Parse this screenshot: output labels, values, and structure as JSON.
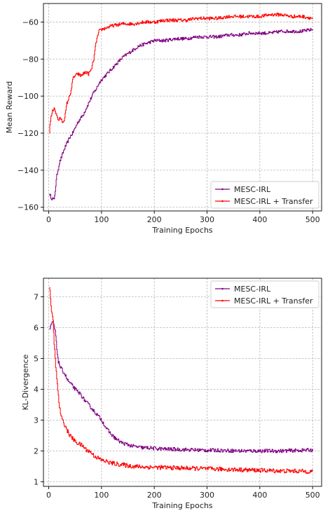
{
  "chart_data": [
    {
      "type": "line",
      "title": "",
      "xlabel": "Training Epochs",
      "ylabel": "Mean Reward",
      "xlim": [
        -10,
        517
      ],
      "ylim": [
        -162,
        -50
      ],
      "xticks": [
        0,
        100,
        200,
        300,
        400,
        500
      ],
      "yticks": [
        -160,
        -140,
        -120,
        -100,
        -80,
        -60
      ],
      "xtick_labels": [
        "0",
        "100",
        "200",
        "300",
        "400",
        "500"
      ],
      "ytick_labels": [
        "−160",
        "−140",
        "−120",
        "−100",
        "−80",
        "−60"
      ],
      "grid": true,
      "legend_position": "bottom-right",
      "series": [
        {
          "name": "MESC-IRL",
          "color": "#800080",
          "x": [
            1,
            5,
            10,
            15,
            20,
            25,
            30,
            35,
            40,
            45,
            50,
            55,
            60,
            65,
            70,
            75,
            80,
            85,
            90,
            95,
            100,
            110,
            120,
            130,
            140,
            150,
            160,
            170,
            180,
            190,
            200,
            220,
            240,
            260,
            280,
            300,
            320,
            340,
            360,
            380,
            400,
            420,
            440,
            460,
            480,
            500
          ],
          "y": [
            -153,
            -155,
            -156,
            -143,
            -136,
            -132,
            -128,
            -125,
            -122,
            -120,
            -117,
            -114,
            -112,
            -110,
            -107,
            -104,
            -101,
            -98,
            -96,
            -93,
            -91,
            -88,
            -85,
            -82,
            -79,
            -77,
            -75,
            -73,
            -72,
            -71,
            -70,
            -70,
            -69,
            -69,
            -68,
            -68,
            -68,
            -67,
            -67,
            -66,
            -66,
            -66,
            -65,
            -65,
            -65,
            -64
          ]
        },
        {
          "name": "MESC-IRL + Transfer",
          "color": "#ff0000",
          "x": [
            1,
            3,
            6,
            10,
            14,
            18,
            22,
            26,
            30,
            34,
            38,
            42,
            46,
            50,
            55,
            60,
            65,
            70,
            75,
            80,
            85,
            90,
            95,
            100,
            110,
            120,
            140,
            160,
            180,
            200,
            220,
            240,
            260,
            280,
            300,
            320,
            340,
            360,
            380,
            400,
            420,
            440,
            460,
            480,
            500
          ],
          "y": [
            -119,
            -113,
            -109,
            -106,
            -110,
            -113,
            -112,
            -114,
            -112,
            -104,
            -101,
            -97,
            -90,
            -89,
            -88,
            -89,
            -88,
            -87,
            -88,
            -86,
            -80,
            -70,
            -65,
            -64,
            -63,
            -62,
            -61,
            -61,
            -60,
            -60,
            -59,
            -59,
            -59,
            -58,
            -58,
            -58,
            -57,
            -57,
            -57,
            -57,
            -56,
            -56,
            -57,
            -57,
            -58
          ]
        }
      ]
    },
    {
      "type": "line",
      "title": "",
      "xlabel": "Training Epochs",
      "ylabel": "KL-Divergence",
      "xlim": [
        -10,
        517
      ],
      "ylim": [
        0.85,
        7.6
      ],
      "xticks": [
        0,
        100,
        200,
        300,
        400,
        500
      ],
      "yticks": [
        1,
        2,
        3,
        4,
        5,
        6,
        7
      ],
      "xtick_labels": [
        "0",
        "100",
        "200",
        "300",
        "400",
        "500"
      ],
      "ytick_labels": [
        "1",
        "2",
        "3",
        "4",
        "5",
        "6",
        "7"
      ],
      "grid": true,
      "legend_position": "top-right",
      "series": [
        {
          "name": "MESC-IRL",
          "color": "#800080",
          "x": [
            1,
            3,
            5,
            8,
            10,
            12,
            15,
            18,
            22,
            26,
            30,
            35,
            40,
            45,
            50,
            55,
            60,
            65,
            70,
            75,
            80,
            85,
            90,
            95,
            100,
            110,
            120,
            130,
            140,
            150,
            160,
            170,
            180,
            190,
            200,
            220,
            240,
            260,
            280,
            300,
            320,
            340,
            360,
            380,
            400,
            420,
            440,
            460,
            480,
            500
          ],
          "y": [
            5.9,
            6.0,
            6.1,
            6.2,
            6.0,
            5.9,
            5.3,
            4.9,
            4.7,
            4.6,
            4.5,
            4.3,
            4.2,
            4.1,
            4.0,
            3.9,
            3.85,
            3.7,
            3.6,
            3.5,
            3.4,
            3.3,
            3.2,
            3.1,
            3.0,
            2.7,
            2.5,
            2.35,
            2.25,
            2.2,
            2.15,
            2.12,
            2.1,
            2.1,
            2.08,
            2.06,
            2.05,
            2.04,
            2.03,
            2.02,
            2.02,
            2.01,
            2.0,
            2.0,
            2.0,
            2.0,
            2.0,
            2.01,
            2.02,
            2.03
          ]
        },
        {
          "name": "MESC-IRL + Transfer",
          "color": "#ff0000",
          "x": [
            1,
            3,
            5,
            8,
            10,
            12,
            15,
            18,
            20,
            25,
            30,
            35,
            40,
            45,
            50,
            55,
            60,
            65,
            70,
            75,
            80,
            85,
            90,
            95,
            100,
            110,
            120,
            130,
            140,
            150,
            160,
            180,
            200,
            220,
            240,
            260,
            280,
            300,
            320,
            340,
            360,
            380,
            400,
            420,
            440,
            460,
            480,
            500
          ],
          "y": [
            7.3,
            7.0,
            6.5,
            6.2,
            5.5,
            5.0,
            4.3,
            3.8,
            3.4,
            3.0,
            2.85,
            2.65,
            2.5,
            2.4,
            2.3,
            2.25,
            2.2,
            2.15,
            2.05,
            2.0,
            1.95,
            1.85,
            1.8,
            1.75,
            1.7,
            1.65,
            1.6,
            1.57,
            1.55,
            1.52,
            1.5,
            1.48,
            1.47,
            1.46,
            1.45,
            1.44,
            1.43,
            1.42,
            1.41,
            1.4,
            1.39,
            1.38,
            1.37,
            1.36,
            1.35,
            1.35,
            1.34,
            1.33
          ]
        }
      ]
    }
  ]
}
